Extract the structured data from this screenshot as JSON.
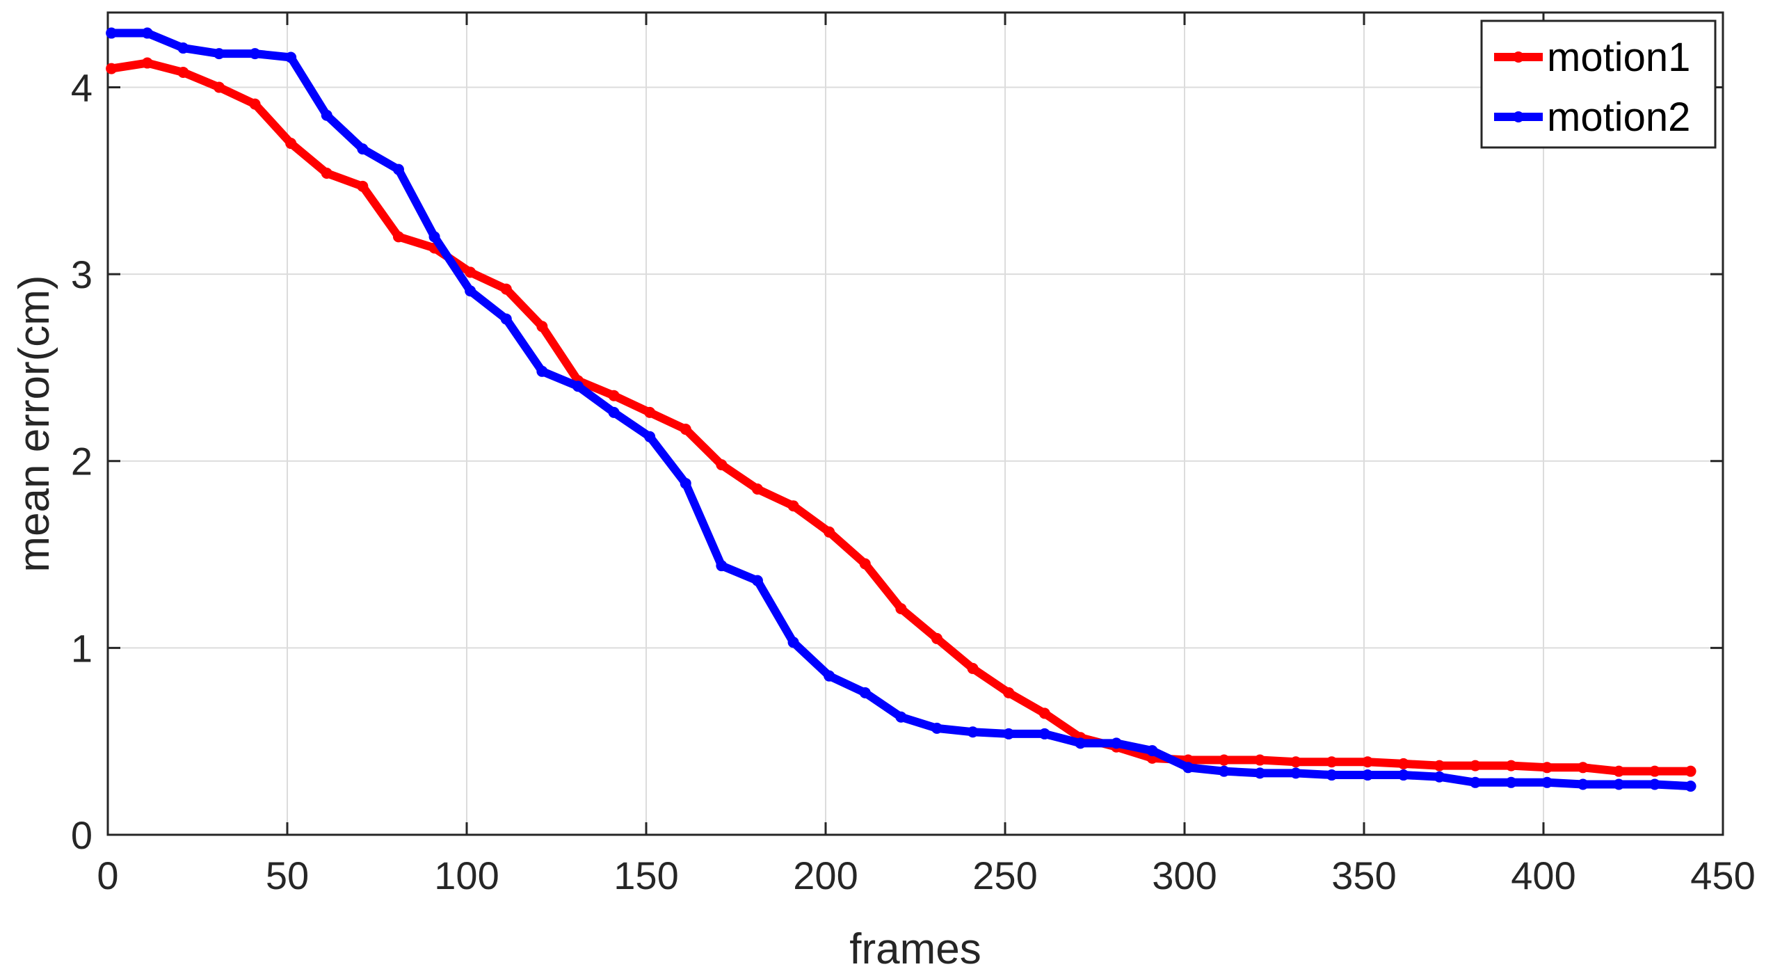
{
  "chart_data": {
    "type": "line",
    "title": "",
    "xlabel": "frames",
    "ylabel": "mean error(cm)",
    "xlim": [
      0,
      450
    ],
    "ylim": [
      0,
      4.4
    ],
    "xticks": [
      0,
      50,
      100,
      150,
      200,
      250,
      300,
      350,
      400,
      450
    ],
    "yticks": [
      0,
      1,
      2,
      3,
      4
    ],
    "grid": true,
    "legend_position": "top-right",
    "x": [
      1,
      11,
      21,
      31,
      41,
      51,
      61,
      71,
      81,
      91,
      101,
      111,
      121,
      131,
      141,
      151,
      161,
      171,
      181,
      191,
      201,
      211,
      221,
      231,
      241,
      251,
      261,
      271,
      281,
      291,
      301,
      311,
      321,
      331,
      341,
      351,
      361,
      371,
      381,
      391,
      401,
      411,
      421,
      431,
      441
    ],
    "series": [
      {
        "name": "motion1",
        "color": "#ff0000",
        "values": [
          4.1,
          4.13,
          4.08,
          4.0,
          3.91,
          3.7,
          3.54,
          3.47,
          3.2,
          3.14,
          3.01,
          2.92,
          2.72,
          2.43,
          2.35,
          2.26,
          2.17,
          1.98,
          1.85,
          1.76,
          1.62,
          1.45,
          1.21,
          1.05,
          0.89,
          0.76,
          0.65,
          0.52,
          0.47,
          0.41,
          0.4,
          0.4,
          0.4,
          0.39,
          0.39,
          0.39,
          0.38,
          0.37,
          0.37,
          0.37,
          0.36,
          0.36,
          0.34,
          0.34,
          0.34
        ]
      },
      {
        "name": "motion2",
        "color": "#0000ff",
        "values": [
          4.29,
          4.29,
          4.21,
          4.18,
          4.18,
          4.16,
          3.85,
          3.67,
          3.56,
          3.2,
          2.91,
          2.76,
          2.48,
          2.4,
          2.26,
          2.13,
          1.88,
          1.44,
          1.36,
          1.03,
          0.85,
          0.76,
          0.63,
          0.57,
          0.55,
          0.54,
          0.54,
          0.49,
          0.49,
          0.45,
          0.36,
          0.34,
          0.33,
          0.33,
          0.32,
          0.32,
          0.32,
          0.31,
          0.28,
          0.28,
          0.28,
          0.27,
          0.27,
          0.27,
          0.26
        ]
      }
    ]
  }
}
